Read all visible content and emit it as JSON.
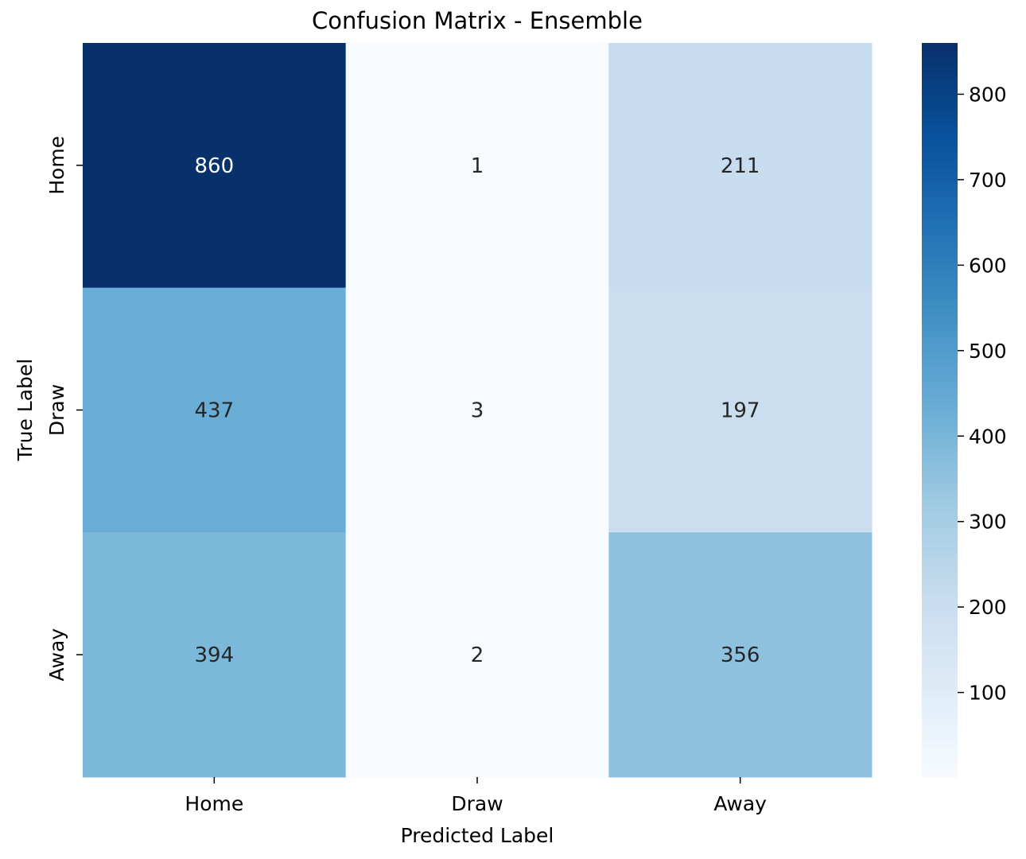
{
  "chart_data": {
    "type": "heatmap",
    "title": "Confusion Matrix - Ensemble",
    "xlabel": "Predicted Label",
    "ylabel": "True Label",
    "x_categories": [
      "Home",
      "Draw",
      "Away"
    ],
    "y_categories": [
      "Home",
      "Draw",
      "Away"
    ],
    "values": [
      [
        860,
        1,
        211
      ],
      [
        437,
        3,
        197
      ],
      [
        394,
        2,
        356
      ]
    ],
    "value_range": [
      1,
      860
    ],
    "colormap": "Blues",
    "colorbar": {
      "ticks": [
        100,
        200,
        300,
        400,
        500,
        600,
        700,
        800
      ]
    },
    "colors": {
      "low": "#f7fbff",
      "high": "#08306b",
      "text_dark": "#262626",
      "text_light": "#ffffff"
    }
  }
}
